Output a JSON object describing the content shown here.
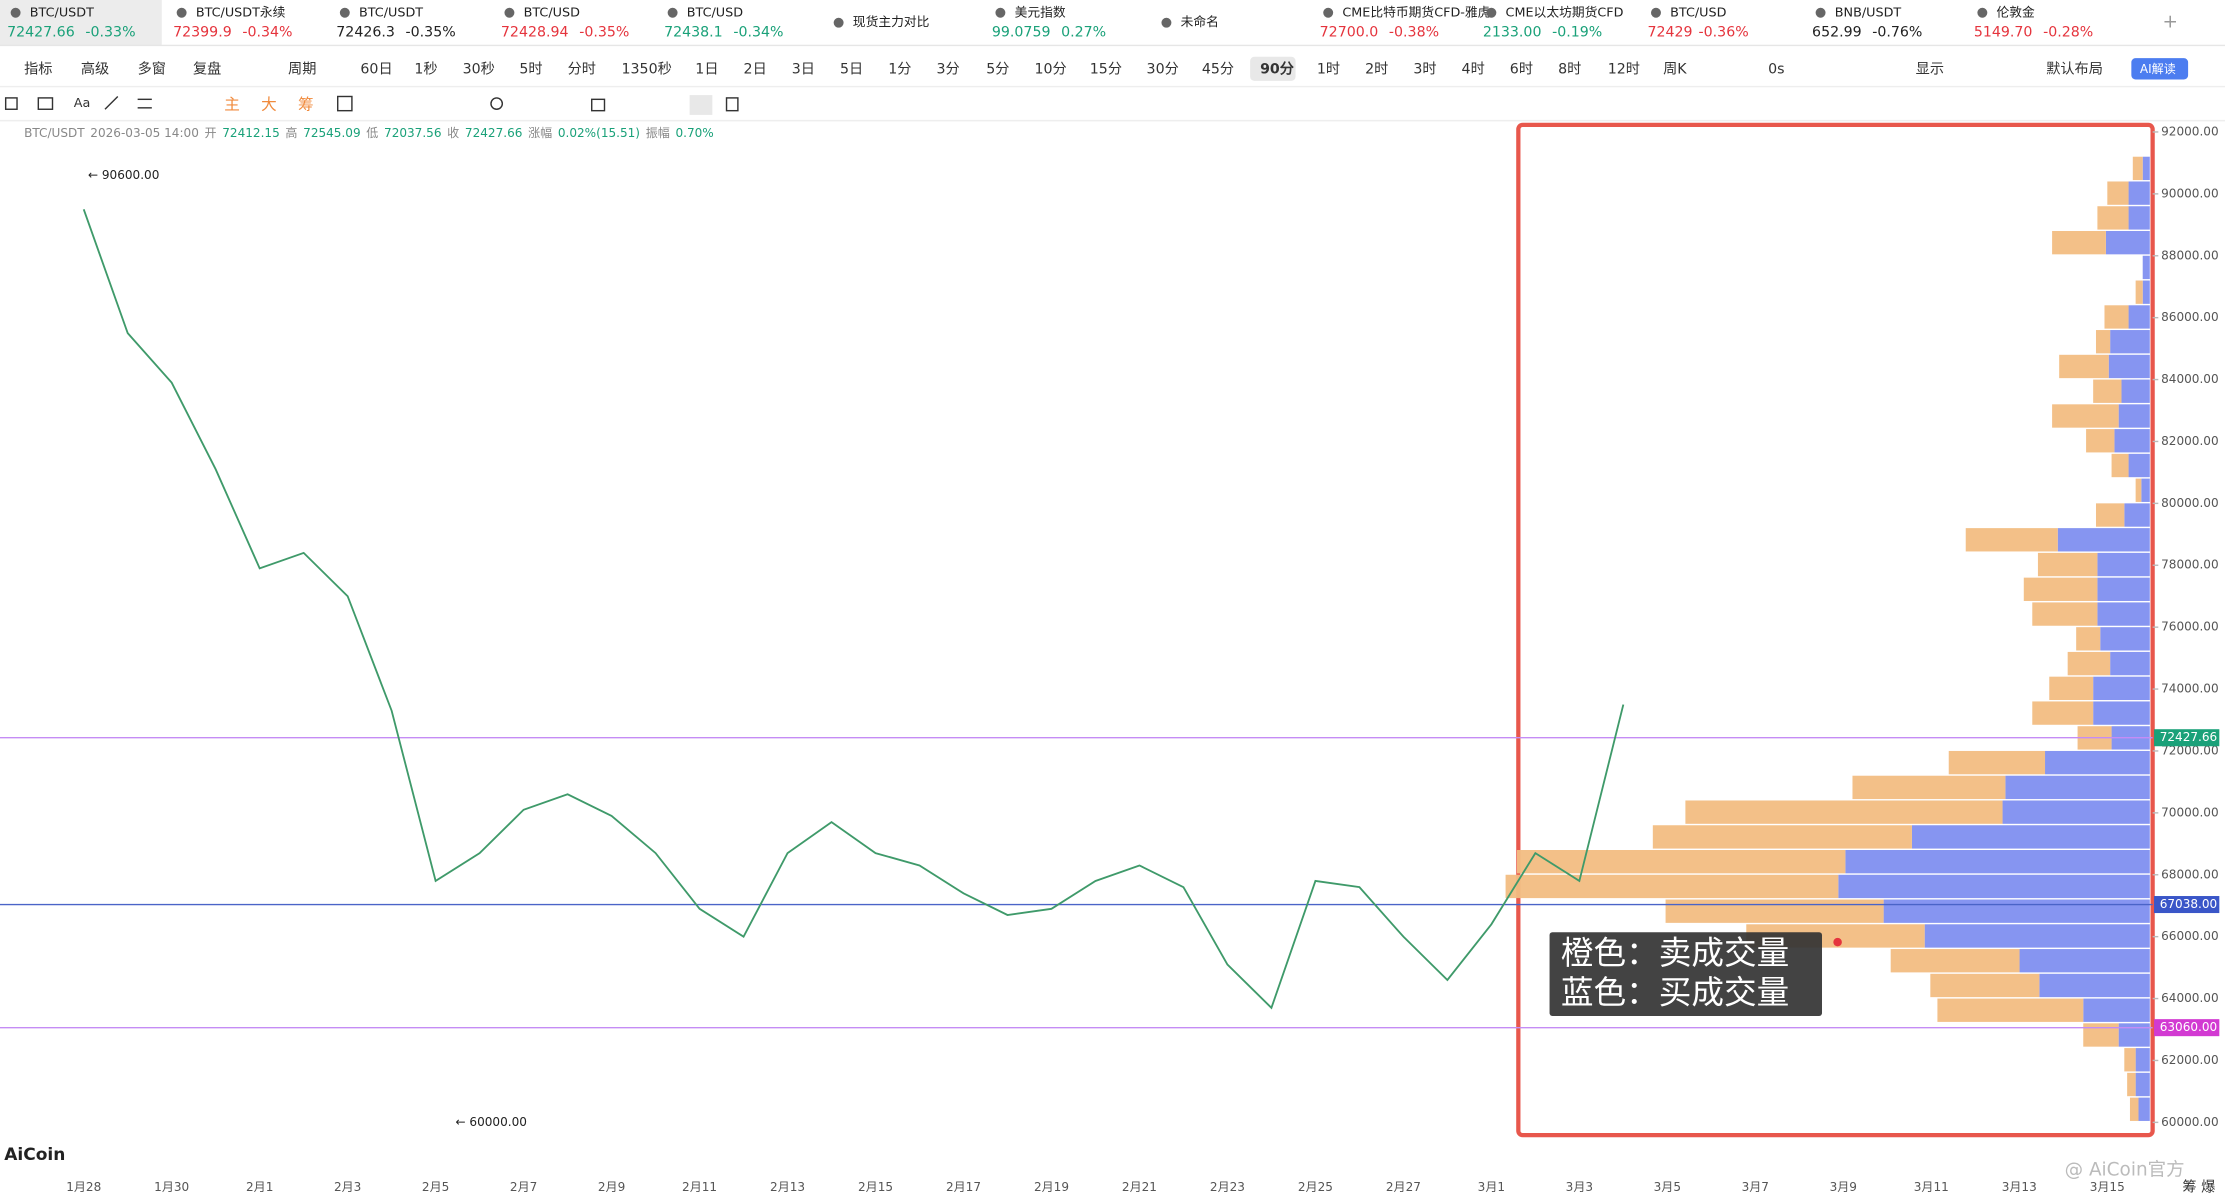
{
  "tickers": [
    {
      "name": "BTC/USDT",
      "price": "72427.66",
      "change": "-0.33%",
      "color": "#1aa179"
    },
    {
      "name": "BTC/USDT永续",
      "price": "72399.9",
      "change": "-0.34%",
      "color": "#e5343d"
    },
    {
      "name": "BTC/USDT",
      "price": "72426.3",
      "change": "-0.35%",
      "color": "#222222"
    },
    {
      "name": "BTC/USD",
      "price": "72428.94",
      "change": "-0.35%",
      "color": "#e5343d"
    },
    {
      "name": "BTC/USD",
      "price": "72438.1",
      "change": "-0.34%",
      "color": "#1aa179"
    },
    {
      "name": "现货主力对比"
    },
    {
      "name": "美元指数",
      "price": "99.0759",
      "change": "0.27%",
      "color": "#1aa179"
    },
    {
      "name": "未命名"
    },
    {
      "name": "CME比特币期货CFD-雅虎",
      "price": "72700.0",
      "change": "-0.38%",
      "color": "#e5343d"
    },
    {
      "name": "CME以太坊期货CFD",
      "price": "2133.00",
      "change": "-0.19%",
      "color": "#1aa179"
    },
    {
      "name": "BTC/USD",
      "price": "72429",
      "change": "-0.36%",
      "color": "#e5343d"
    },
    {
      "name": "BNB/USDT",
      "price": "652.99",
      "change": "-0.76%",
      "color": "#222222"
    },
    {
      "name": "伦敦金",
      "price": "5149.70",
      "change": "-0.28%",
      "color": "#e5343d"
    }
  ],
  "toolbar": {
    "items": [
      "指标",
      "高级",
      "多窗",
      "复盘",
      "周期",
      "60日",
      "1秒",
      "30秒",
      "5时",
      "分时",
      "1350秒",
      "1日",
      "2日",
      "3日",
      "5日",
      "1分",
      "3分",
      "5分",
      "10分",
      "15分",
      "30分",
      "45分",
      "90分",
      "1时",
      "2时",
      "3时",
      "4时",
      "6时",
      "8时",
      "12时",
      "周K",
      "0s",
      "显示",
      "默认布局",
      "AI解读"
    ],
    "selected_index": 22
  },
  "tools_text": [
    "主",
    "大",
    "筹"
  ],
  "info": [
    {
      "text": "BTC/USDT",
      "color": "#888888"
    },
    {
      "text": "2026-03-05 14:00",
      "color": "#888888"
    },
    {
      "text": "开",
      "color": "#888888"
    },
    {
      "text": "72412.15",
      "color": "#1aa179"
    },
    {
      "text": "高",
      "color": "#888888"
    },
    {
      "text": "72545.09",
      "color": "#1aa179"
    },
    {
      "text": "低",
      "color": "#888888"
    },
    {
      "text": "72037.56",
      "color": "#1aa179"
    },
    {
      "text": "收",
      "color": "#888888"
    },
    {
      "text": "72427.66",
      "color": "#1aa179"
    },
    {
      "text": "涨幅",
      "color": "#888888"
    },
    {
      "text": "0.02%(15.51)",
      "color": "#1aa179"
    },
    {
      "text": "振幅",
      "color": "#888888"
    },
    {
      "text": "0.70%",
      "color": "#1aa179"
    }
  ],
  "chart_data": {
    "type": "line",
    "color": "#3f9a6a",
    "categories": [
      "1月28",
      null,
      "1月30",
      null,
      "2月1",
      null,
      "2月3",
      null,
      "2月5",
      null,
      "2月7",
      null,
      "2月9",
      null,
      "2月11",
      null,
      "2月13",
      null,
      "2月15",
      null,
      "2月17",
      null,
      "2月19",
      null,
      "2月21",
      null,
      "2月23",
      null,
      "2月25",
      null,
      "2月27",
      null,
      "3月1",
      null,
      "3月3",
      null,
      "3月5",
      null,
      "3月7",
      null,
      "3月9",
      null,
      "3月11",
      null,
      "3月13",
      null,
      "3月15"
    ],
    "values": [
      89500,
      85500,
      83900,
      81100,
      77900,
      78400,
      77000,
      73300,
      67800,
      68700,
      70100,
      70600,
      69900,
      68700,
      66900,
      66000,
      68700,
      69700,
      68700,
      68300,
      67400,
      66700,
      66900,
      67800,
      68300,
      67600,
      65100,
      63700,
      67800,
      67600,
      66000,
      64600,
      66400,
      68700,
      67800,
      73500,
      null,
      null,
      null,
      null,
      null,
      null,
      null,
      null,
      null,
      null,
      null
    ],
    "ylim": [
      60000,
      92000
    ],
    "yticks": [
      {
        "value": 60000,
        "label": "60000.00"
      },
      {
        "value": 62000,
        "label": "62000.00"
      },
      {
        "value": 64000,
        "label": "64000.00"
      },
      {
        "value": 66000,
        "label": "66000.00"
      },
      {
        "value": 68000,
        "label": "68000.00"
      },
      {
        "value": 70000,
        "label": "70000.00"
      },
      {
        "value": 72000,
        "label": "72000.00"
      },
      {
        "value": 74000,
        "label": "74000.00"
      },
      {
        "value": 76000,
        "label": "76000.00"
      },
      {
        "value": 78000,
        "label": "78000.00"
      },
      {
        "value": 80000,
        "label": "80000.00"
      },
      {
        "value": 82000,
        "label": "82000.00"
      },
      {
        "value": 84000,
        "label": "84000.00"
      },
      {
        "value": 86000,
        "label": "86000.00"
      },
      {
        "value": 88000,
        "label": "88000.00"
      },
      {
        "value": 90000,
        "label": "90000.00"
      },
      {
        "value": 92000,
        "label": "92000.00"
      }
    ],
    "hlines": [
      {
        "value": 72427.66,
        "label": "72427.66",
        "color": "#c58cf5",
        "label_color": "#1aa179"
      },
      {
        "value": 67038,
        "label": "67038.00",
        "color": "#4a64c8",
        "label_color": "#3a56c8"
      },
      {
        "value": 63060,
        "label": "63060.00",
        "color": "#c58cf5",
        "label_color": "#d23ad2"
      }
    ],
    "annotations": [
      {
        "value": 90600,
        "label": "← 90600.00"
      },
      {
        "value": 60000,
        "label": "← 60000.00"
      }
    ],
    "profile": {
      "bins": [
        60000,
        60800,
        61600,
        62400,
        63200,
        64000,
        64800,
        65600,
        66400,
        67200,
        68000,
        68800,
        69600,
        70400,
        71200,
        72000,
        72800,
        73600,
        74400,
        75200,
        76000,
        76800,
        77600,
        78400,
        79200,
        80000,
        80800,
        81600,
        82400,
        83200,
        84000,
        84800,
        85600,
        86400,
        87200,
        88000,
        88800,
        89600,
        90400,
        91200,
        92000
      ],
      "buy_values": [
        8,
        10,
        10,
        22,
        47,
        78,
        92,
        159,
        188,
        220,
        215,
        168,
        104,
        102,
        74,
        27,
        40,
        40,
        28,
        35,
        37,
        37,
        37,
        65,
        18,
        6,
        15,
        25,
        22,
        20,
        29,
        28,
        15,
        5,
        5,
        31,
        15,
        15,
        5,
        0
      ],
      "sell_values": [
        6,
        6,
        8,
        25,
        103,
        77,
        91,
        126,
        154,
        235,
        232,
        183,
        224,
        108,
        68,
        24,
        43,
        31,
        30,
        17,
        46,
        52,
        42,
        65,
        20,
        4,
        12,
        20,
        47,
        20,
        35,
        10,
        17,
        5,
        0,
        38,
        22,
        15,
        7,
        0
      ],
      "buy_color": "#7f8ff0",
      "sell_color": "#f2bd82",
      "xlim": [
        0,
        450
      ]
    }
  },
  "legend_note": [
    "橙色：卖成交量",
    "蓝色：买成交量"
  ],
  "footer": {
    "logo": "AiCoin",
    "watermark": "@ AiCoin官方",
    "corner": "筹 爆"
  }
}
